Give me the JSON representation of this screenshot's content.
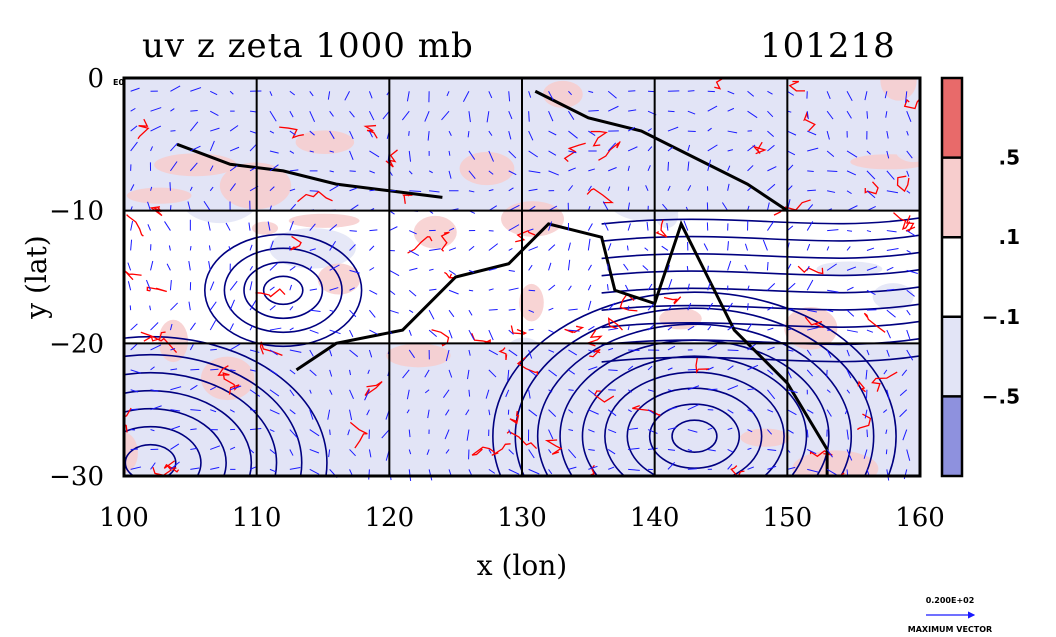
{
  "header": {
    "title": "uv z zeta 1000 mb",
    "date": "101218"
  },
  "chart_data": {
    "type": "heatmap",
    "xlabel": "x (lon)",
    "ylabel": "y (lat)",
    "xlim": [
      100,
      160
    ],
    "ylim": [
      -30,
      0
    ],
    "xticks": [
      "100",
      "110",
      "120",
      "130",
      "140",
      "150",
      "160"
    ],
    "yticks": [
      "0",
      "−10",
      "−20",
      "−30"
    ],
    "grid": true,
    "colorbar": {
      "labels": [
        ".5",
        ".1",
        "−.1",
        "−.5"
      ],
      "levels": [
        0.5,
        0.1,
        -0.1,
        -0.5
      ],
      "colors": [
        "#e86a6a",
        "#f7cdcd",
        "#ffffff",
        "#e2e4f6",
        "#8e91de"
      ]
    },
    "vector_legend": {
      "magnitude": "0.200E+02",
      "label": "MAXIMUM VECTOR"
    },
    "corner_tag": "E0",
    "colors": {
      "vector": "#1a1aff",
      "positive_contour": "#ff0000",
      "height_contour": "#000080",
      "coast": "#000000"
    }
  }
}
